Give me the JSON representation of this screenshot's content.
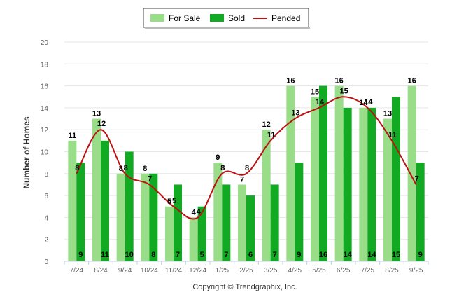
{
  "chart_data": {
    "type": "bar",
    "title": "",
    "xlabel": "",
    "ylabel": "Number of Homes",
    "ylim": [
      0,
      20
    ],
    "yticks": [
      0,
      2,
      4,
      6,
      8,
      10,
      12,
      14,
      16,
      18,
      20
    ],
    "grid": true,
    "legend_position": "top-center",
    "categories": [
      "7/24",
      "8/24",
      "9/24",
      "10/24",
      "11/24",
      "12/24",
      "1/25",
      "2/25",
      "3/25",
      "4/25",
      "5/25",
      "6/25",
      "7/25",
      "8/25",
      "9/25"
    ],
    "series": [
      {
        "name": "For Sale",
        "type": "bar",
        "color": "#99dd88",
        "values": [
          11,
          13,
          8,
          8,
          5,
          4,
          9,
          7,
          12,
          16,
          15,
          16,
          14,
          13,
          16
        ]
      },
      {
        "name": "Sold",
        "type": "bar",
        "color": "#11aa22",
        "values": [
          9,
          11,
          10,
          8,
          7,
          5,
          7,
          6,
          7,
          9,
          16,
          14,
          14,
          15,
          9
        ]
      },
      {
        "name": "Pended",
        "type": "line",
        "color": "#bb1111",
        "values": [
          8,
          12,
          8,
          7,
          5,
          4,
          8,
          8,
          11,
          13,
          14,
          15,
          14,
          11,
          7
        ]
      }
    ],
    "credit": "Copyright © Trendgraphix, Inc."
  }
}
